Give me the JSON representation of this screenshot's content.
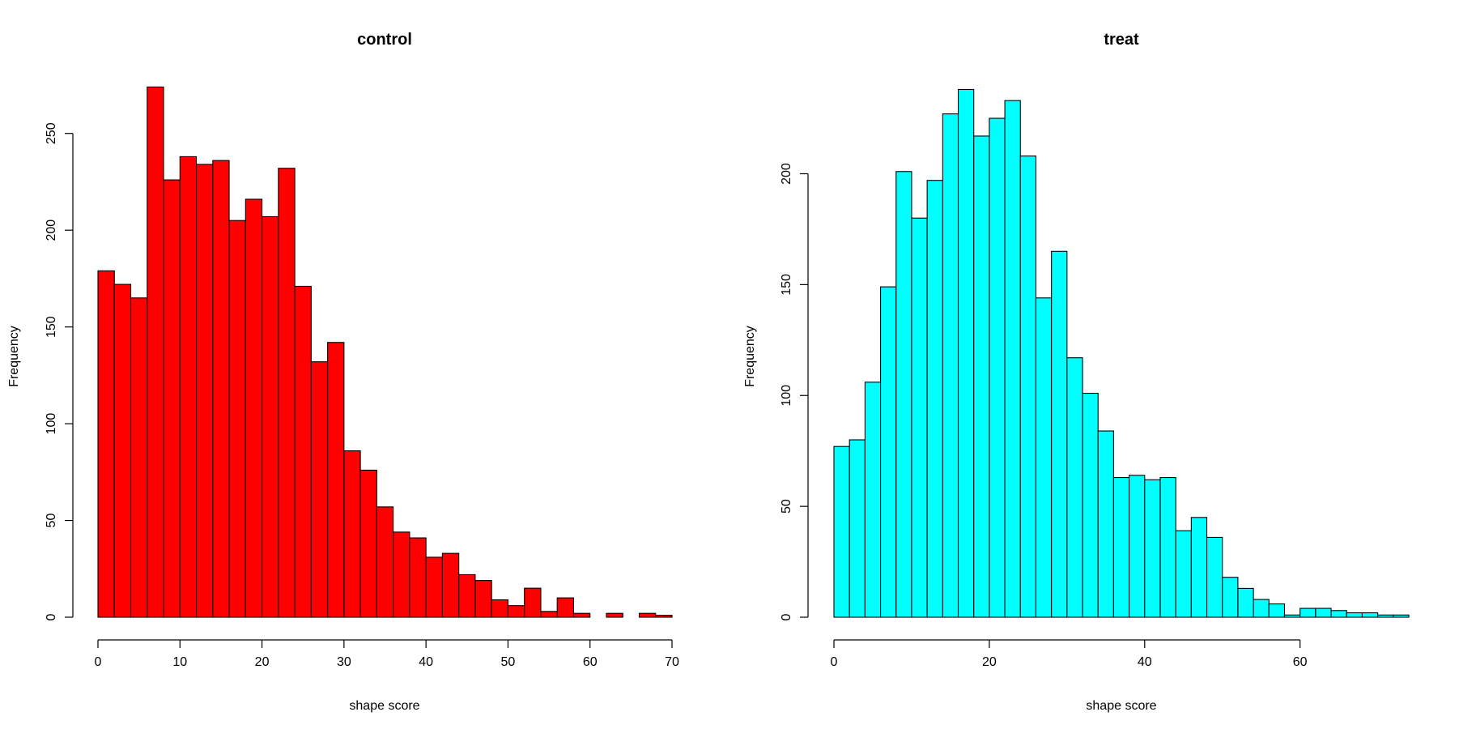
{
  "chart_data": [
    {
      "type": "bar",
      "title": "control",
      "xlabel": "shape score",
      "ylabel": "Frequency",
      "color": "#ff0000",
      "bin_width": 2,
      "xlim": [
        0,
        70
      ],
      "ylim": [
        0,
        275
      ],
      "x_ticks": [
        0,
        10,
        20,
        30,
        40,
        50,
        60,
        70
      ],
      "y_ticks": [
        0,
        50,
        100,
        150,
        200,
        250
      ],
      "bins": [
        {
          "start": 0,
          "end": 2,
          "count": 179
        },
        {
          "start": 2,
          "end": 4,
          "count": 172
        },
        {
          "start": 4,
          "end": 6,
          "count": 165
        },
        {
          "start": 6,
          "end": 8,
          "count": 274
        },
        {
          "start": 8,
          "end": 10,
          "count": 226
        },
        {
          "start": 10,
          "end": 12,
          "count": 238
        },
        {
          "start": 12,
          "end": 14,
          "count": 234
        },
        {
          "start": 14,
          "end": 16,
          "count": 236
        },
        {
          "start": 16,
          "end": 18,
          "count": 205
        },
        {
          "start": 18,
          "end": 20,
          "count": 216
        },
        {
          "start": 20,
          "end": 22,
          "count": 207
        },
        {
          "start": 22,
          "end": 24,
          "count": 232
        },
        {
          "start": 24,
          "end": 26,
          "count": 171
        },
        {
          "start": 26,
          "end": 28,
          "count": 132
        },
        {
          "start": 28,
          "end": 30,
          "count": 142
        },
        {
          "start": 30,
          "end": 32,
          "count": 86
        },
        {
          "start": 32,
          "end": 34,
          "count": 76
        },
        {
          "start": 34,
          "end": 36,
          "count": 57
        },
        {
          "start": 36,
          "end": 38,
          "count": 44
        },
        {
          "start": 38,
          "end": 40,
          "count": 41
        },
        {
          "start": 40,
          "end": 42,
          "count": 31
        },
        {
          "start": 42,
          "end": 44,
          "count": 33
        },
        {
          "start": 44,
          "end": 46,
          "count": 22
        },
        {
          "start": 46,
          "end": 48,
          "count": 19
        },
        {
          "start": 48,
          "end": 50,
          "count": 9
        },
        {
          "start": 50,
          "end": 52,
          "count": 6
        },
        {
          "start": 52,
          "end": 54,
          "count": 15
        },
        {
          "start": 54,
          "end": 56,
          "count": 3
        },
        {
          "start": 56,
          "end": 58,
          "count": 10
        },
        {
          "start": 58,
          "end": 60,
          "count": 2
        },
        {
          "start": 60,
          "end": 62,
          "count": 0
        },
        {
          "start": 62,
          "end": 64,
          "count": 2
        },
        {
          "start": 64,
          "end": 66,
          "count": 0
        },
        {
          "start": 66,
          "end": 68,
          "count": 2
        },
        {
          "start": 68,
          "end": 70,
          "count": 1
        }
      ]
    },
    {
      "type": "bar",
      "title": "treat",
      "xlabel": "shape score",
      "ylabel": "Frequency",
      "color": "#00ffff",
      "bin_width": 2,
      "xlim": [
        0,
        74
      ],
      "ylim": [
        0,
        240
      ],
      "axis_x_range": [
        0,
        60
      ],
      "x_ticks": [
        0,
        20,
        40,
        60
      ],
      "y_ticks": [
        0,
        50,
        100,
        150,
        200
      ],
      "bins": [
        {
          "start": 0,
          "end": 2,
          "count": 77
        },
        {
          "start": 2,
          "end": 4,
          "count": 80
        },
        {
          "start": 4,
          "end": 6,
          "count": 106
        },
        {
          "start": 6,
          "end": 8,
          "count": 149
        },
        {
          "start": 8,
          "end": 10,
          "count": 201
        },
        {
          "start": 10,
          "end": 12,
          "count": 180
        },
        {
          "start": 12,
          "end": 14,
          "count": 197
        },
        {
          "start": 14,
          "end": 16,
          "count": 227
        },
        {
          "start": 16,
          "end": 18,
          "count": 238
        },
        {
          "start": 18,
          "end": 20,
          "count": 217
        },
        {
          "start": 20,
          "end": 22,
          "count": 225
        },
        {
          "start": 22,
          "end": 24,
          "count": 233
        },
        {
          "start": 24,
          "end": 26,
          "count": 208
        },
        {
          "start": 26,
          "end": 28,
          "count": 144
        },
        {
          "start": 28,
          "end": 30,
          "count": 165
        },
        {
          "start": 30,
          "end": 32,
          "count": 117
        },
        {
          "start": 32,
          "end": 34,
          "count": 101
        },
        {
          "start": 34,
          "end": 36,
          "count": 84
        },
        {
          "start": 36,
          "end": 38,
          "count": 63
        },
        {
          "start": 38,
          "end": 40,
          "count": 64
        },
        {
          "start": 40,
          "end": 42,
          "count": 62
        },
        {
          "start": 42,
          "end": 44,
          "count": 63
        },
        {
          "start": 44,
          "end": 46,
          "count": 39
        },
        {
          "start": 46,
          "end": 48,
          "count": 45
        },
        {
          "start": 48,
          "end": 50,
          "count": 36
        },
        {
          "start": 50,
          "end": 52,
          "count": 18
        },
        {
          "start": 52,
          "end": 54,
          "count": 13
        },
        {
          "start": 54,
          "end": 56,
          "count": 8
        },
        {
          "start": 56,
          "end": 58,
          "count": 6
        },
        {
          "start": 58,
          "end": 60,
          "count": 1
        },
        {
          "start": 60,
          "end": 62,
          "count": 4
        },
        {
          "start": 62,
          "end": 64,
          "count": 4
        },
        {
          "start": 64,
          "end": 66,
          "count": 3
        },
        {
          "start": 66,
          "end": 68,
          "count": 2
        },
        {
          "start": 68,
          "end": 70,
          "count": 2
        },
        {
          "start": 70,
          "end": 72,
          "count": 1
        },
        {
          "start": 72,
          "end": 74,
          "count": 1
        }
      ]
    }
  ]
}
